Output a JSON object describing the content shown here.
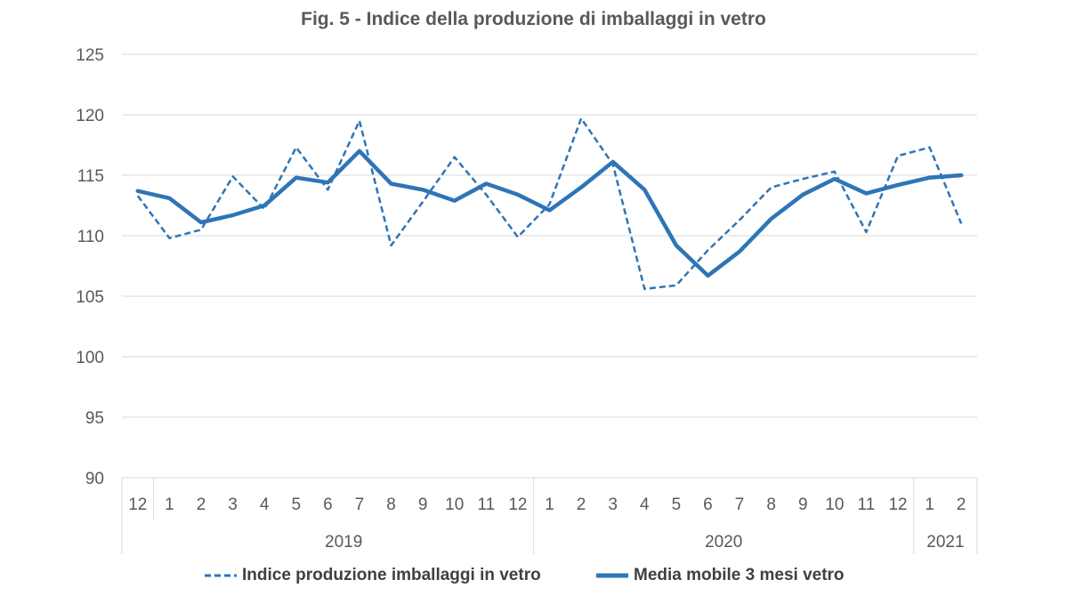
{
  "chart_data": {
    "type": "line",
    "title": "Fig. 5 - Indice della produzione di imballaggi in vetro",
    "xlabel": "",
    "ylabel": "",
    "ylim": [
      90,
      125
    ],
    "yticks": [
      "90",
      "95",
      "100",
      "105",
      "110",
      "115",
      "120",
      "125"
    ],
    "categories": [
      "12",
      "1",
      "2",
      "3",
      "4",
      "5",
      "6",
      "7",
      "8",
      "9",
      "10",
      "11",
      "12",
      "1",
      "2",
      "3",
      "4",
      "5",
      "6",
      "7",
      "8",
      "9",
      "10",
      "11",
      "12",
      "1",
      "2"
    ],
    "year_groups": [
      {
        "label": "",
        "start": 0,
        "end": 0
      },
      {
        "label": "2019",
        "start": 1,
        "end": 12
      },
      {
        "label": "2020",
        "start": 13,
        "end": 24
      },
      {
        "label": "2021",
        "start": 25,
        "end": 26
      }
    ],
    "grid": true,
    "legend_position": "bottom",
    "series": [
      {
        "name": "Indice produzione imballaggi in vetro",
        "style": "dashed",
        "color": "#2E75B6",
        "values": [
          113.3,
          109.8,
          110.5,
          114.9,
          112.2,
          117.3,
          113.8,
          119.5,
          109.2,
          112.8,
          116.5,
          113.4,
          109.9,
          112.6,
          119.7,
          115.9,
          105.6,
          105.9,
          108.8,
          111.3,
          114.0,
          114.7,
          115.3,
          110.3,
          116.6,
          117.3,
          111.0
        ]
      },
      {
        "name": "Media mobile 3 mesi vetro",
        "style": "solid",
        "color": "#2E75B6",
        "values": [
          113.7,
          113.1,
          111.1,
          111.7,
          112.5,
          114.8,
          114.4,
          117.0,
          114.3,
          113.8,
          112.9,
          114.3,
          113.4,
          112.1,
          114.0,
          116.1,
          113.8,
          109.2,
          106.7,
          108.7,
          111.4,
          113.4,
          114.7,
          113.5,
          114.2,
          114.8,
          115.0
        ]
      }
    ]
  }
}
